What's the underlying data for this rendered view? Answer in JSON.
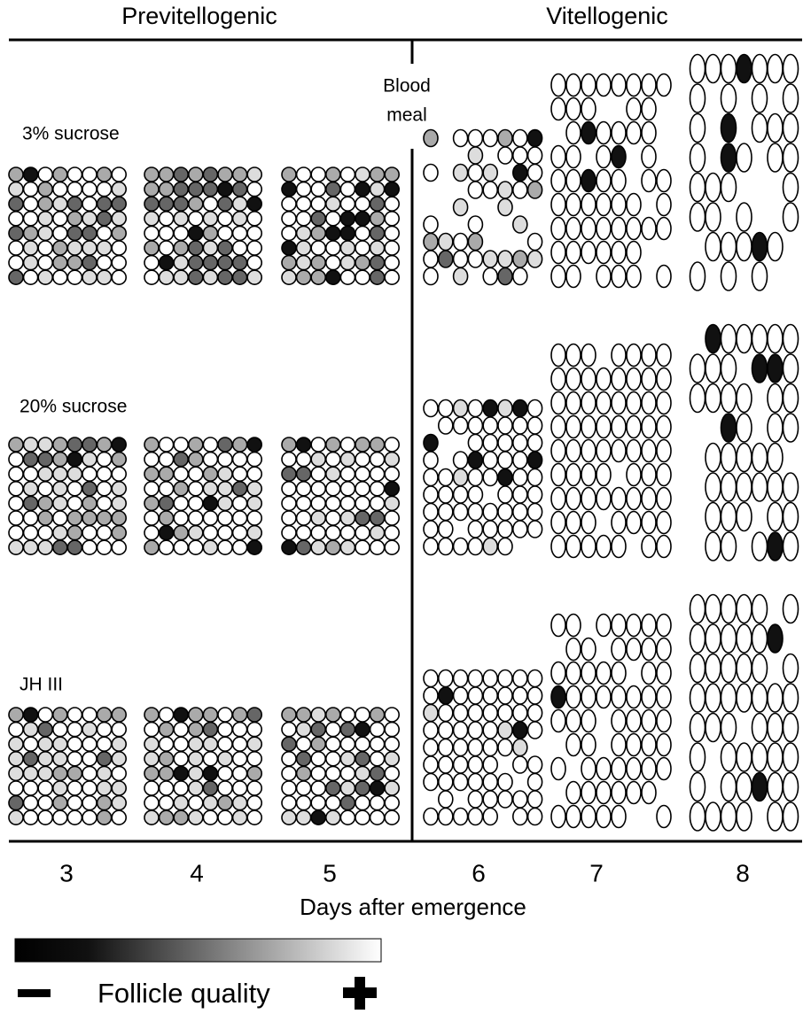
{
  "header": {
    "left": "Previtellogenic",
    "right": "Vitellogenic"
  },
  "annotation": {
    "lines": [
      "Blood",
      "meal"
    ]
  },
  "rows": [
    {
      "label": "3% sucrose"
    },
    {
      "label": "20% sucrose"
    },
    {
      "label": "JH III"
    }
  ],
  "x_axis": {
    "ticks": [
      "3",
      "4",
      "5",
      "6",
      "7",
      "8"
    ],
    "title": "Days after emergence"
  },
  "legend": {
    "label": "Follicle quality"
  }
}
